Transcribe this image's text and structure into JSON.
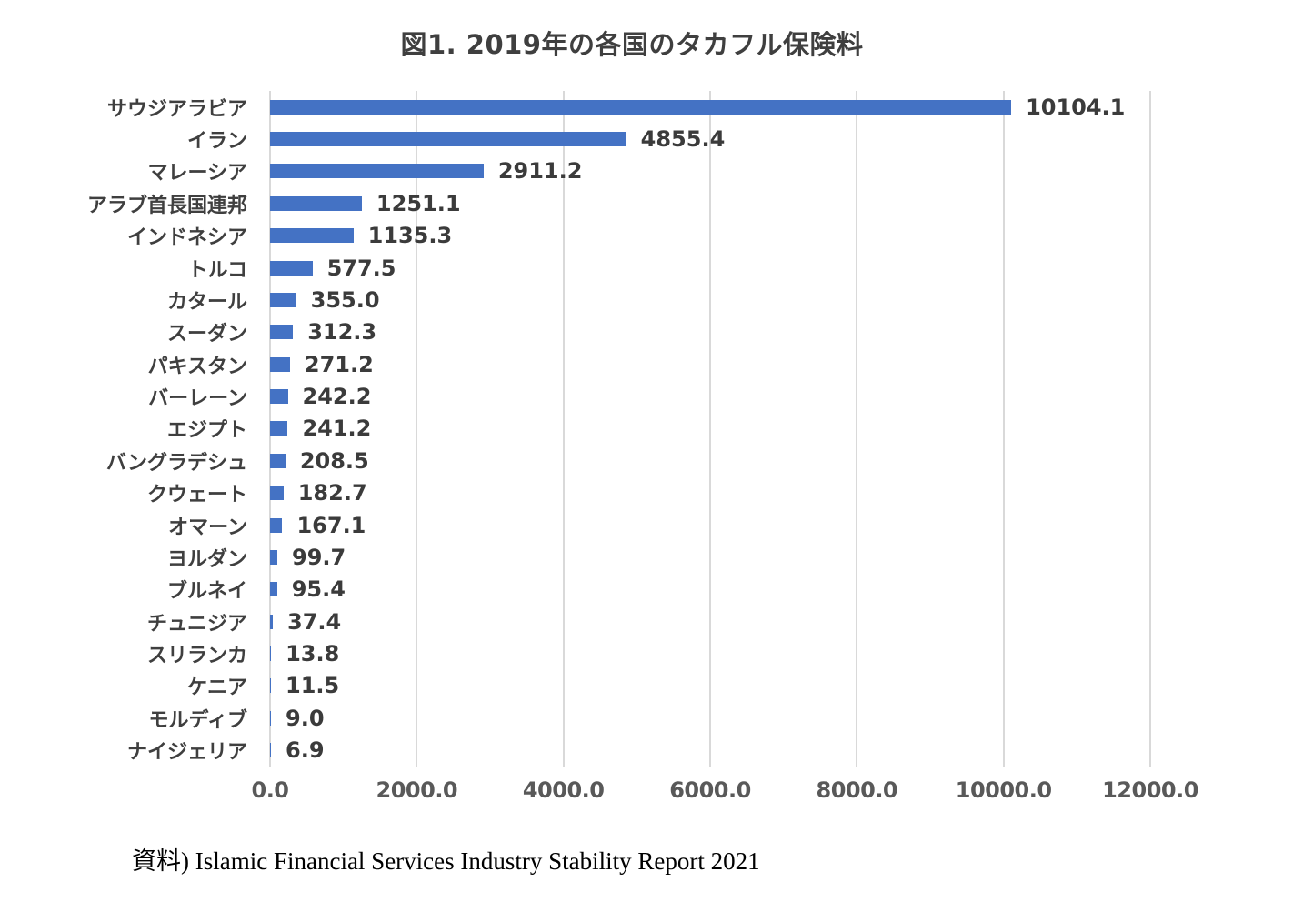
{
  "title": "図1. 2019年の各国のタカフル保険料",
  "source": "資料) Islamic Financial Services Industry Stability Report 2021",
  "chart_data": {
    "type": "bar",
    "orientation": "horizontal",
    "title": "図1. 2019年の各国のタカフル保険料",
    "categories": [
      "サウジアラビア",
      "イラン",
      "マレーシア",
      "アラブ首長国連邦",
      "インドネシア",
      "トルコ",
      "カタール",
      "スーダン",
      "パキスタン",
      "バーレーン",
      "エジプト",
      "バングラデシュ",
      "クウェート",
      "オマーン",
      "ヨルダン",
      "ブルネイ",
      "チュニジア",
      "スリランカ",
      "ケニア",
      "モルディブ",
      "ナイジェリア"
    ],
    "values": [
      10104.1,
      4855.4,
      2911.2,
      1251.1,
      1135.3,
      577.5,
      355.0,
      312.3,
      271.2,
      242.2,
      241.2,
      208.5,
      182.7,
      167.1,
      99.7,
      95.4,
      37.4,
      13.8,
      11.5,
      9.0,
      6.9
    ],
    "value_labels": [
      "10104.1",
      "4855.4",
      "2911.2",
      "1251.1",
      "1135.3",
      "577.5",
      "355.0",
      "312.3",
      "271.2",
      "242.2",
      "241.2",
      "208.5",
      "182.7",
      "167.1",
      "99.7",
      "95.4",
      "37.4",
      "13.8",
      "11.5",
      "9.0",
      "6.9"
    ],
    "xlabel": "",
    "ylabel": "",
    "xlim": [
      0,
      12000
    ],
    "x_tick_labels": [
      "0.0",
      "2000.0",
      "4000.0",
      "6000.0",
      "8000.0",
      "10000.0",
      "12000.0"
    ],
    "x_tick_values": [
      0,
      2000,
      4000,
      6000,
      8000,
      10000,
      12000
    ],
    "grid": "vertical",
    "legend": "none",
    "bar_color": "#4472c4",
    "gridline_color": "#d9d9d9",
    "title_color": "#3f3f3f",
    "label_color": "#3f3f3f",
    "tick_color": "#595959"
  }
}
